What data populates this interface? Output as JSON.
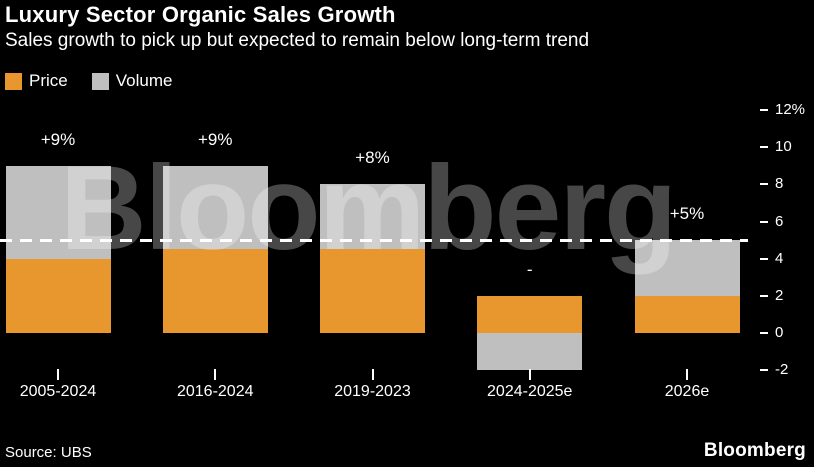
{
  "header": {
    "title": "Luxury Sector Organic Sales Growth",
    "subtitle": "Sales growth to pick up but expected to remain below long-term trend"
  },
  "legend": [
    {
      "label": "Price",
      "color": "#E8962E"
    },
    {
      "label": "Volume",
      "color": "#BFBFBF"
    }
  ],
  "chart_data": {
    "type": "bar",
    "stacked": true,
    "title": "Luxury Sector Organic Sales Growth",
    "subtitle": "Sales growth to pick up but expected to remain below long-term trend",
    "categories": [
      "2005-2024",
      "2016-2024",
      "2019-2023",
      "2024-2025e",
      "2026e"
    ],
    "series": [
      {
        "name": "Price",
        "color": "#E8962E",
        "values": [
          4,
          4.5,
          4.5,
          2,
          2
        ]
      },
      {
        "name": "Volume",
        "color": "#BFBFBF",
        "values": [
          5,
          4.5,
          3.5,
          -2,
          3
        ]
      }
    ],
    "bar_labels": [
      "+9%",
      "+9%",
      "+8%",
      "-",
      "+5%"
    ],
    "y_axis": {
      "tick_values": [
        12,
        10,
        8,
        6,
        4,
        2,
        0,
        -2
      ],
      "tick_labels": [
        "12%",
        "10",
        "8",
        "6",
        "4",
        "2",
        "0",
        "-2"
      ],
      "unit": "%"
    },
    "ylim": [
      -2.5,
      12.6
    ],
    "reference_line": {
      "value": 5,
      "style": "dashed",
      "color": "#FFFFFF"
    },
    "grid": false,
    "legend_position": "top-left",
    "watermark": "Bloomberg"
  },
  "footer": {
    "source": "Source: UBS",
    "brand": "Bloomberg"
  }
}
